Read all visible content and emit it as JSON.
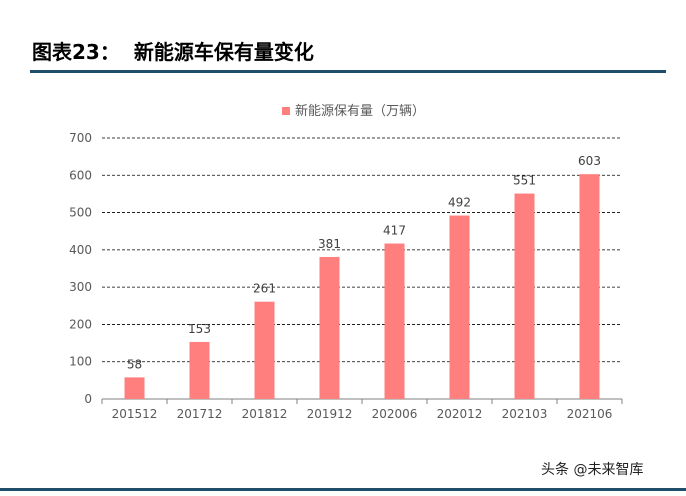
{
  "figure": {
    "number": "图表23：",
    "title": "新能源车保有量变化"
  },
  "watermark": "头条 @未来智库",
  "colors": {
    "bar": "#FF7F7F",
    "rule": "#1f4e6b",
    "grid": "#000000"
  },
  "chart_data": {
    "type": "bar",
    "categories": [
      "201512",
      "201712",
      "201812",
      "201912",
      "202006",
      "202012",
      "202103",
      "202106"
    ],
    "series": [
      {
        "name": "新能源保有量（万辆）",
        "values": [
          58,
          153,
          261,
          381,
          417,
          492,
          551,
          603
        ]
      }
    ],
    "ylim": [
      0,
      700
    ],
    "yticks": [
      0,
      100,
      200,
      300,
      400,
      500,
      600,
      700
    ],
    "grid": "dashed horizontal",
    "legend": "top-center",
    "data_labels": true
  }
}
